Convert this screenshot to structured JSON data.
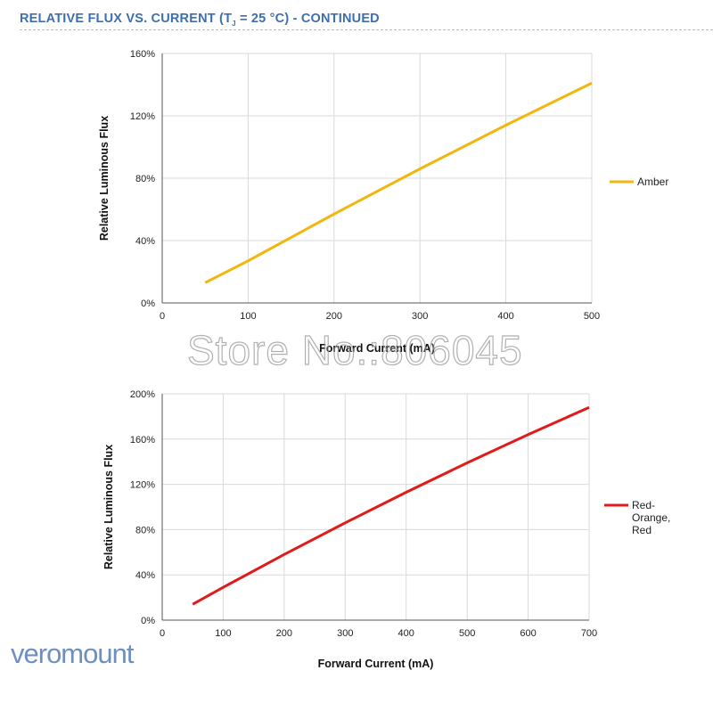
{
  "header": {
    "title_prefix": "RELATIVE FLUX VS. CURRENT (T",
    "title_sub": "J",
    "title_suffix": " = 25 °C) - CONTINUED"
  },
  "watermark": "Store No.:806045",
  "logo": "veromount",
  "colors": {
    "header": "#3d6fb0",
    "header_rule": "#f2b72e",
    "grid": "#d9d9d9"
  },
  "chart_data": [
    {
      "type": "line",
      "xlabel": "Forward Current (mA)",
      "ylabel": "Relative Luminous Flux",
      "xlim": [
        0,
        500
      ],
      "ylim": [
        0,
        160
      ],
      "xticks": [
        0,
        100,
        200,
        300,
        400,
        500
      ],
      "yticks": [
        0,
        40,
        80,
        120,
        160
      ],
      "ytick_labels": [
        "0%",
        "40%",
        "80%",
        "120%",
        "160%"
      ],
      "grid": true,
      "legend_position": "right",
      "series": [
        {
          "name": "Amber",
          "color": "#f2b70f",
          "x": [
            50,
            100,
            200,
            300,
            400,
            500
          ],
          "y": [
            13,
            27,
            57,
            86,
            114,
            141
          ]
        }
      ]
    },
    {
      "type": "line",
      "xlabel": "Forward Current (mA)",
      "ylabel": "Relative Luminous Flux",
      "xlim": [
        0,
        700
      ],
      "ylim": [
        0,
        200
      ],
      "xticks": [
        0,
        100,
        200,
        300,
        400,
        500,
        600,
        700
      ],
      "yticks": [
        0,
        40,
        80,
        120,
        160,
        200
      ],
      "ytick_labels": [
        "0%",
        "40%",
        "80%",
        "120%",
        "160%",
        "200%"
      ],
      "grid": true,
      "legend_position": "right",
      "series": [
        {
          "name": "Red-Orange, Red",
          "legend_lines": [
            "Red-",
            "Orange,",
            "Red"
          ],
          "color": "#e01b1b",
          "x": [
            50,
            100,
            200,
            300,
            400,
            500,
            600,
            700
          ],
          "y": [
            14,
            29,
            58,
            86,
            113,
            139,
            164,
            188
          ]
        }
      ]
    }
  ]
}
